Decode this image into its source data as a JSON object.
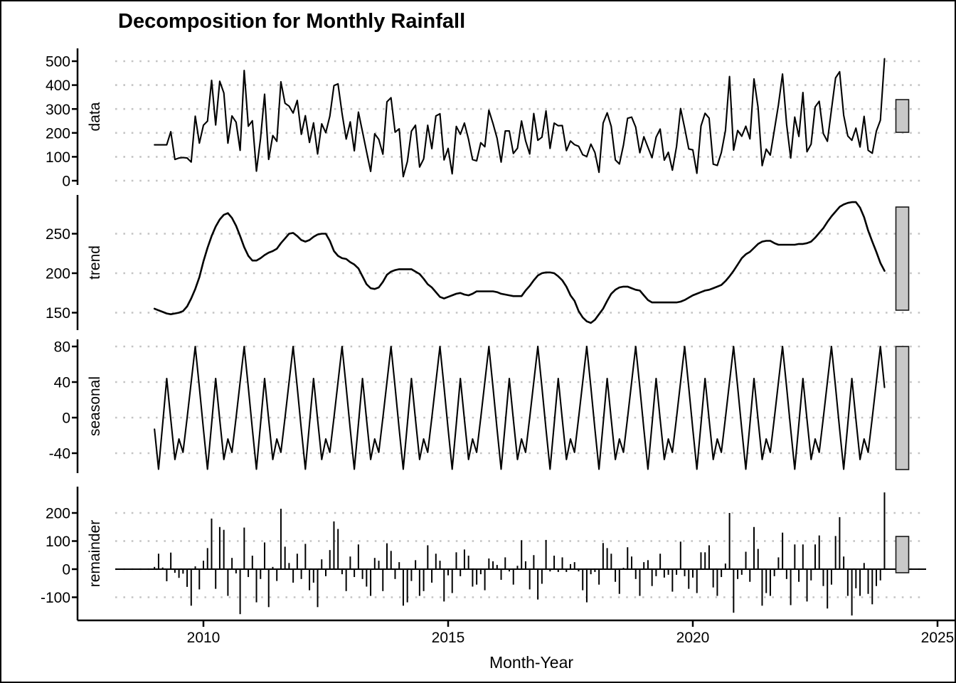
{
  "window": {
    "background": "#ffffff",
    "border_color": "#000000"
  },
  "chart_data": {
    "type": "line",
    "title": "Decomposition for Monthly Rainfall",
    "xlabel": "Month-Year",
    "x_axis": {
      "tick_years": [
        2010,
        2015,
        2020,
        2025
      ],
      "start_month": "2009-01",
      "end_month": "2023-12",
      "n_months": 180
    },
    "colors": {
      "line": "#000000",
      "grid": "#c4c4c4",
      "axis": "#000000",
      "range_bar_fill": "#c9c9c9",
      "range_bar_border": "#1a1a1a",
      "text": "#000000"
    },
    "legend": "none",
    "grid": "dotted horizontal at each y tick",
    "panels": [
      {
        "id": "data",
        "label": "data",
        "style": "line",
        "yticks": [
          0,
          100,
          200,
          300,
          400,
          500
        ],
        "ylim": [
          0,
          535
        ],
        "source": "sum",
        "note": "data = trend + seasonal + remainder"
      },
      {
        "id": "trend",
        "label": "trend",
        "style": "line",
        "yticks": [
          150,
          200,
          250
        ],
        "ylim": [
          130,
          295
        ],
        "values": [
          155,
          153,
          151,
          149,
          148,
          149,
          150,
          152,
          158,
          168,
          180,
          195,
          215,
          232,
          247,
          259,
          268,
          274,
          276,
          270,
          260,
          247,
          233,
          222,
          216,
          216,
          219,
          223,
          226,
          228,
          231,
          238,
          244,
          250,
          251,
          247,
          242,
          240,
          242,
          246,
          249,
          250,
          250,
          241,
          228,
          222,
          219,
          218,
          214,
          211,
          206,
          196,
          186,
          181,
          180,
          182,
          189,
          198,
          202,
          204,
          205,
          205,
          205,
          205,
          202,
          199,
          193,
          186,
          182,
          176,
          170,
          168,
          170,
          172,
          174,
          175,
          173,
          172,
          174,
          177,
          177,
          177,
          177,
          177,
          176,
          174,
          173,
          172,
          171,
          171,
          171,
          178,
          184,
          191,
          197,
          200,
          201,
          201,
          200,
          196,
          191,
          183,
          172,
          165,
          152,
          144,
          139,
          137,
          141,
          148,
          155,
          165,
          174,
          179,
          182,
          183,
          183,
          181,
          179,
          178,
          172,
          166,
          163,
          163,
          163,
          163,
          163,
          163,
          163,
          164,
          166,
          169,
          172,
          174,
          176,
          178,
          179,
          181,
          183,
          185,
          190,
          196,
          203,
          211,
          219,
          224,
          227,
          232,
          237,
          240,
          241,
          241,
          238,
          236,
          236,
          236,
          236,
          236,
          237,
          237,
          238,
          240,
          245,
          251,
          257,
          265,
          272,
          278,
          284,
          287,
          289,
          290,
          290,
          283,
          271,
          254,
          240,
          227,
          213,
          203
        ]
      },
      {
        "id": "seasonal",
        "label": "seasonal",
        "style": "line",
        "yticks": [
          -40,
          0,
          40,
          80
        ],
        "ylim": [
          -62,
          82
        ],
        "pattern_monthly": [
          -13,
          -58,
          -7,
          44,
          -2,
          -47,
          -24,
          -39,
          0,
          40,
          80,
          34
        ],
        "note": "12-month pattern (Jan..Dec) repeated 2009-2023, peak ~80 in Nov, trough ~-58 in Feb"
      },
      {
        "id": "remainder",
        "label": "remainder",
        "style": "bars",
        "yticks": [
          -100,
          0,
          100,
          200
        ],
        "ylim": [
          -170,
          275
        ],
        "values": [
          8,
          55,
          6,
          -43,
          59,
          -13,
          -31,
          -16,
          -63,
          -130,
          10,
          -72,
          30,
          75,
          180,
          -70,
          150,
          140,
          -95,
          40,
          -15,
          -160,
          148,
          -28,
          48,
          -118,
          -35,
          95,
          -135,
          8,
          -42,
          215,
          80,
          22,
          -48,
          55,
          -35,
          90,
          -75,
          -48,
          -135,
          35,
          -25,
          68,
          170,
          143,
          -18,
          -78,
          45,
          -28,
          88,
          -35,
          -62,
          -95,
          40,
          30,
          -78,
          92,
          65,
          -35,
          25,
          -130,
          -118,
          -42,
          32,
          -95,
          -78,
          85,
          -48,
          55,
          30,
          -115,
          -22,
          -85,
          60,
          -25,
          70,
          48,
          -62,
          -55,
          -18,
          -75,
          38,
          28,
          15,
          -38,
          42,
          -8,
          -55,
          12,
          103,
          28,
          -72,
          50,
          -108,
          -52,
          104,
          -8,
          48,
          -10,
          42,
          -10,
          18,
          25,
          -8,
          -75,
          -118,
          -18,
          -10,
          -55,
          93,
          75,
          55,
          -45,
          -88,
          5,
          78,
          45,
          -35,
          -95,
          25,
          32,
          -60,
          -25,
          55,
          -30,
          -20,
          -80,
          -20,
          98,
          -25,
          -70,
          -30,
          -85,
          60,
          60,
          85,
          -65,
          -95,
          -28,
          20,
          200,
          -155,
          -35,
          -20,
          62,
          -45,
          150,
          72,
          -130,
          -85,
          -95,
          -25,
          42,
          130,
          -35,
          -128,
          88,
          -45,
          88,
          -115,
          -40,
          88,
          120,
          -60,
          -140,
          -55,
          118,
          185,
          45,
          -95,
          -165,
          -68,
          -95,
          22,
          -88,
          -125,
          -60,
          -40,
          273
        ]
      }
    ],
    "range_bars": {
      "description": "gray scale-comparison bar at right edge of each panel, equal data range in every panel"
    }
  }
}
